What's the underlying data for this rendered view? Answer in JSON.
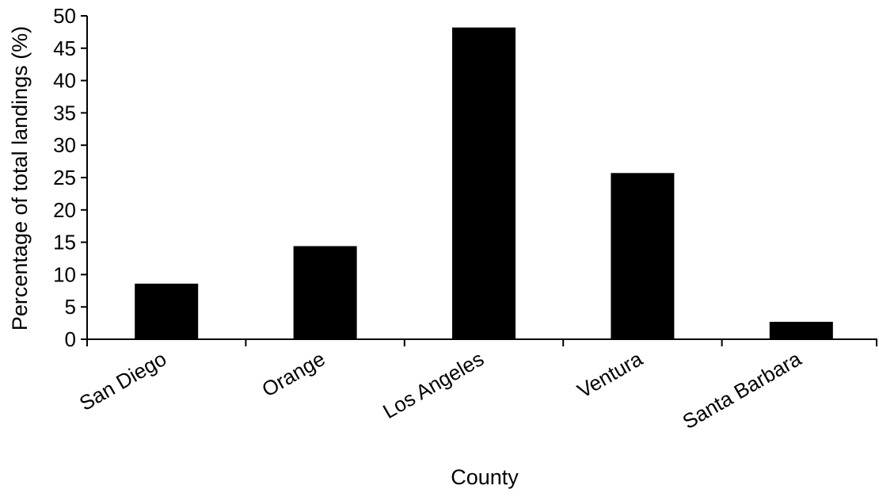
{
  "chart_data": {
    "type": "bar",
    "title": "",
    "xlabel": "County",
    "ylabel": "Percentage of total landings (%)",
    "categories": [
      "San Diego",
      "Orange",
      "Los Angeles",
      "Ventura",
      "Santa Barbara"
    ],
    "values": [
      8.6,
      14.4,
      48.2,
      25.7,
      2.7
    ],
    "ylim": [
      0,
      50
    ],
    "yticks": [
      0,
      5,
      10,
      15,
      20,
      25,
      30,
      35,
      40,
      45,
      50
    ],
    "ytick_labels": [
      "0",
      "5",
      "10",
      "15",
      "20",
      "25",
      "30",
      "35",
      "40",
      "45",
      "50"
    ],
    "grid": false,
    "legend": "none",
    "bar_color": "#000000",
    "axis_color": "#000000"
  }
}
